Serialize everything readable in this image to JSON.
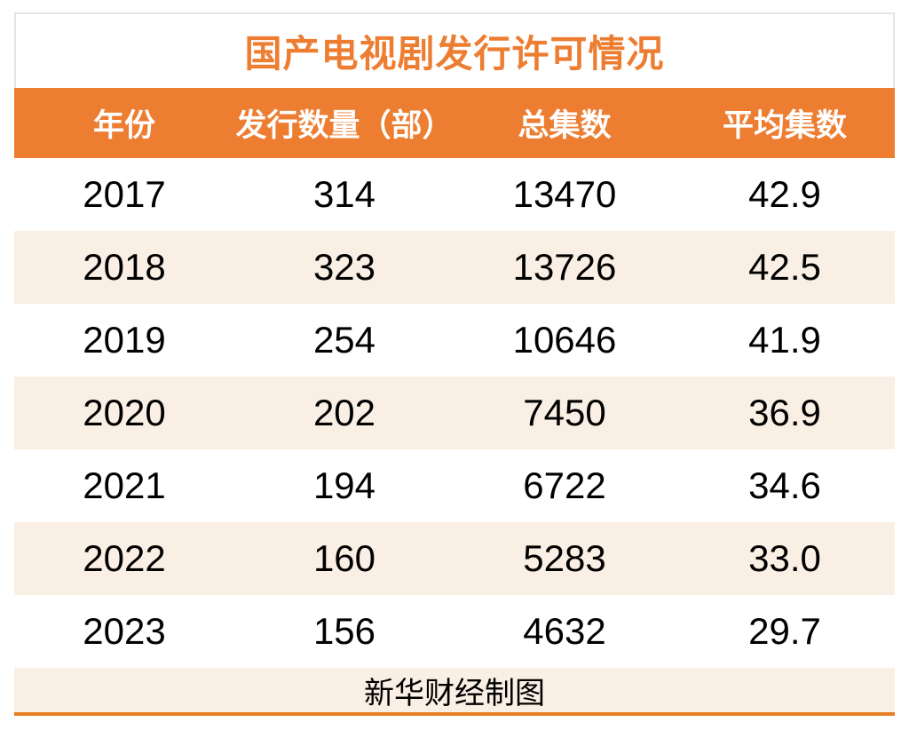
{
  "table": {
    "title": "国产电视剧发行许可情况",
    "columns": [
      "年份",
      "发行数量（部）",
      "总集数",
      "平均集数"
    ],
    "rows": [
      [
        "2017",
        "314",
        "13470",
        "42.9"
      ],
      [
        "2018",
        "323",
        "13726",
        "42.5"
      ],
      [
        "2019",
        "254",
        "10646",
        "41.9"
      ],
      [
        "2020",
        "202",
        "7450",
        "36.9"
      ],
      [
        "2021",
        "194",
        "6722",
        "34.6"
      ],
      [
        "2022",
        "160",
        "5283",
        "33.0"
      ],
      [
        "2023",
        "156",
        "4632",
        "29.7"
      ]
    ],
    "footer": "新华财经制图"
  },
  "colors": {
    "accent_orange": "#ED7D31",
    "line_orange": "#E87E22",
    "stripe_cream": "#FAEFE4",
    "border_gray": "#E5E5E5",
    "header_text": "#FFFFFF",
    "body_text": "#000000"
  },
  "chart_data": {
    "type": "table",
    "title": "国产电视剧发行许可情况",
    "columns": [
      "年份",
      "发行数量（部）",
      "总集数",
      "平均集数"
    ],
    "rows": [
      [
        2017,
        314,
        13470,
        42.9
      ],
      [
        2018,
        323,
        13726,
        42.5
      ],
      [
        2019,
        254,
        10646,
        41.9
      ],
      [
        2020,
        202,
        7450,
        36.9
      ],
      [
        2021,
        194,
        6722,
        34.6
      ],
      [
        2022,
        160,
        5283,
        33.0
      ],
      [
        2023,
        156,
        4632,
        29.7
      ]
    ],
    "source_note": "新华财经制图",
    "layout": {
      "header_background": "#ED7D31",
      "row_striping": "alternate white / cream starting white",
      "column_alignment": "center"
    }
  }
}
